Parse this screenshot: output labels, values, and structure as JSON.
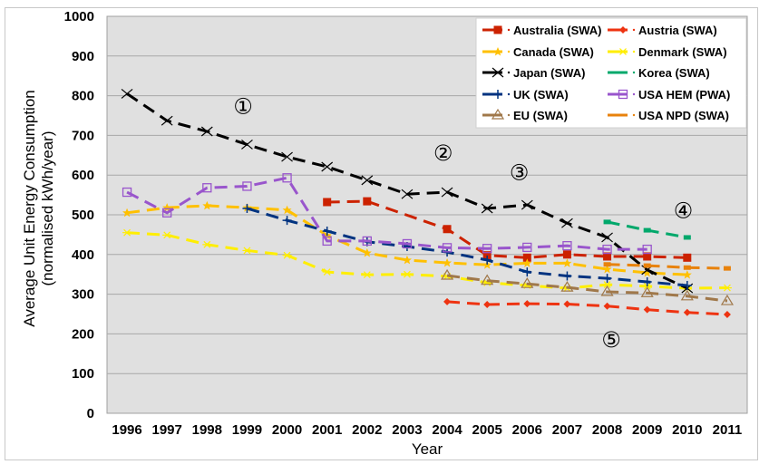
{
  "chart_data": {
    "type": "line",
    "title": "",
    "xlabel": "Year",
    "ylabel": "Average Unit Energy Consumption",
    "ylabel_line2": "(normalised kWh/year)",
    "categories": [
      "1996",
      "1997",
      "1998",
      "1999",
      "2000",
      "2001",
      "2002",
      "2003",
      "2004",
      "2005",
      "2006",
      "2007",
      "2008",
      "2009",
      "2010",
      "2011"
    ],
    "ylim": [
      0,
      1000
    ],
    "yticks": [
      0,
      100,
      200,
      300,
      400,
      500,
      600,
      700,
      800,
      900,
      1000
    ],
    "grid": true,
    "legend_position": "top-right",
    "series": [
      {
        "name": "Australia (SWA)",
        "color": "#cc2200",
        "marker": "square",
        "values": [
          null,
          null,
          null,
          null,
          null,
          532,
          534,
          null,
          464,
          398,
          392,
          400,
          395,
          395,
          392,
          null
        ]
      },
      {
        "name": "Austria (SWA)",
        "color": "#ee3311",
        "marker": "diamond",
        "values": [
          null,
          null,
          null,
          null,
          null,
          null,
          null,
          null,
          281,
          274,
          276,
          275,
          270,
          261,
          254,
          249
        ]
      },
      {
        "name": "Canada (SWA)",
        "color": "#ffc000",
        "marker": "star",
        "values": [
          505,
          518,
          523,
          518,
          512,
          448,
          404,
          386,
          379,
          374,
          378,
          378,
          363,
          354,
          349,
          null
        ]
      },
      {
        "name": "Denmark (SWA)",
        "color": "#ffee00",
        "marker": "asterisk",
        "values": [
          455,
          449,
          425,
          410,
          398,
          356,
          349,
          350,
          345,
          329,
          322,
          315,
          324,
          320,
          315,
          316
        ]
      },
      {
        "name": "Japan (SWA)",
        "color": "#000000",
        "marker": "x",
        "values": [
          805,
          737,
          710,
          677,
          646,
          621,
          587,
          552,
          557,
          516,
          525,
          479,
          443,
          361,
          315,
          null
        ]
      },
      {
        "name": "Korea (SWA)",
        "color": "#00a86b",
        "marker": "dash",
        "values": [
          null,
          null,
          null,
          null,
          null,
          null,
          null,
          null,
          null,
          null,
          null,
          null,
          482,
          461,
          443,
          null
        ]
      },
      {
        "name": "UK (SWA)",
        "color": "#003380",
        "marker": "plus",
        "values": [
          null,
          null,
          null,
          516,
          486,
          459,
          432,
          420,
          406,
          386,
          356,
          346,
          340,
          331,
          322,
          null
        ]
      },
      {
        "name": "USA HEM (PWA)",
        "color": "#9955cc",
        "marker": "open-square",
        "values": [
          557,
          505,
          568,
          572,
          593,
          434,
          434,
          427,
          417,
          415,
          418,
          422,
          413,
          413,
          null,
          null
        ]
      },
      {
        "name": "EU (SWA)",
        "color": "#a0784a",
        "marker": "open-triangle",
        "values": [
          null,
          null,
          null,
          null,
          null,
          null,
          null,
          null,
          347,
          334,
          326,
          317,
          306,
          303,
          295,
          283
        ]
      },
      {
        "name": "USA NPD (SWA)",
        "color": "#e8820c",
        "marker": "dash",
        "values": [
          null,
          null,
          null,
          null,
          null,
          null,
          null,
          null,
          null,
          null,
          null,
          null,
          375,
          372,
          367,
          365
        ]
      }
    ],
    "annotations": [
      {
        "label": "①",
        "x": 1998.9,
        "y": 775
      },
      {
        "label": "②",
        "x": 2003.9,
        "y": 657
      },
      {
        "label": "③",
        "x": 2005.8,
        "y": 609
      },
      {
        "label": "④",
        "x": 2009.9,
        "y": 513
      },
      {
        "label": "⑤",
        "x": 2008.1,
        "y": 187
      }
    ]
  }
}
